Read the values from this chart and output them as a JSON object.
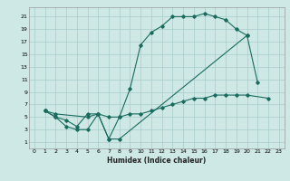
{
  "xlabel": "Humidex (Indice chaleur)",
  "bg_color": "#cde8e5",
  "grid_color": "#a8ccca",
  "line_color": "#1a6b5e",
  "xlim": [
    -0.5,
    23.5
  ],
  "ylim": [
    0,
    22.5
  ],
  "xticks": [
    0,
    1,
    2,
    3,
    4,
    5,
    6,
    7,
    8,
    9,
    10,
    11,
    12,
    13,
    14,
    15,
    16,
    17,
    18,
    19,
    20,
    21,
    22,
    23
  ],
  "yticks": [
    1,
    3,
    5,
    7,
    9,
    11,
    13,
    15,
    17,
    19,
    21
  ],
  "curve1_x": [
    1,
    2,
    3,
    4,
    5,
    6,
    7,
    8,
    9,
    10,
    11,
    12,
    13,
    14,
    15,
    16,
    17,
    18,
    19,
    20,
    21
  ],
  "curve1_y": [
    6,
    5,
    4.5,
    3.5,
    5.5,
    5.5,
    1.5,
    5.0,
    9.5,
    16.5,
    18.5,
    19.5,
    21.0,
    21.0,
    21.0,
    21.5,
    21.0,
    20.5,
    19.0,
    18.0,
    10.5
  ],
  "curve2_x": [
    1,
    2,
    3,
    4,
    5,
    6,
    7,
    8,
    20
  ],
  "curve2_y": [
    6.0,
    5.0,
    3.5,
    3.0,
    3.0,
    5.5,
    1.5,
    1.5,
    18.0
  ],
  "curve3_x": [
    1,
    2,
    5,
    6,
    7,
    8,
    9,
    10,
    11,
    12,
    13,
    14,
    15,
    16,
    17,
    18,
    19,
    20,
    22
  ],
  "curve3_y": [
    6.0,
    5.5,
    5.0,
    5.5,
    5.0,
    5.0,
    5.5,
    5.5,
    6.0,
    6.5,
    7.0,
    7.5,
    8.0,
    8.0,
    8.5,
    8.5,
    8.5,
    8.5,
    8.0
  ]
}
